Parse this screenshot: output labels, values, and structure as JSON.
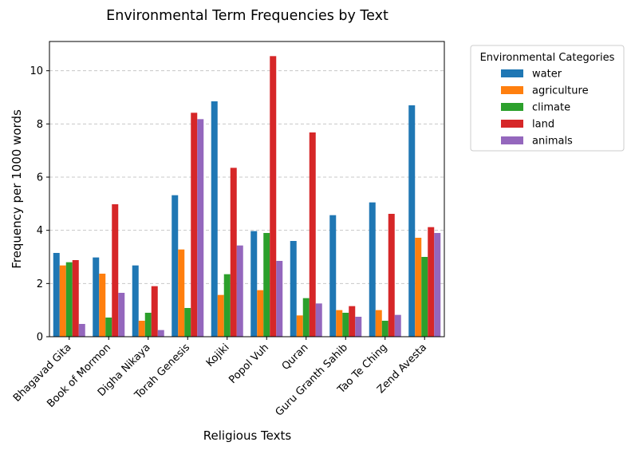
{
  "chart_data": {
    "type": "bar",
    "title": "Environmental Term Frequencies by Text",
    "xlabel": "Religious Texts",
    "ylabel": "Frequency per 1000 words",
    "ylim": [
      0,
      11.1
    ],
    "yticks": [
      0,
      2,
      4,
      6,
      8,
      10
    ],
    "grid": "y-dashed",
    "legend_title": "Environmental Categories",
    "legend_position": "outside-upper-right",
    "categories": [
      "Bhagavad Gita",
      "Book of Mormon",
      "Digha Nikaya",
      "Torah Genesis",
      "Kojiki",
      "Popol Vuh",
      "Quran",
      "Guru Granth Sahib",
      "Tao Te Ching",
      "Zend Avesta"
    ],
    "series": [
      {
        "name": "water",
        "color": "#1f77b4",
        "values": [
          3.15,
          2.98,
          2.68,
          5.32,
          8.85,
          3.97,
          3.6,
          4.57,
          5.05,
          8.7
        ]
      },
      {
        "name": "agriculture",
        "color": "#ff7f0e",
        "values": [
          2.68,
          2.37,
          0.6,
          3.28,
          1.57,
          1.75,
          0.8,
          1.0,
          1.0,
          3.72
        ]
      },
      {
        "name": "climate",
        "color": "#2ca02c",
        "values": [
          2.8,
          0.72,
          0.9,
          1.08,
          2.35,
          3.9,
          1.45,
          0.9,
          0.6,
          3.0
        ]
      },
      {
        "name": "land",
        "color": "#d62728",
        "values": [
          2.88,
          4.98,
          1.9,
          8.42,
          6.35,
          10.55,
          7.68,
          1.15,
          4.62,
          4.12
        ]
      },
      {
        "name": "animals",
        "color": "#9467bd",
        "values": [
          0.48,
          1.65,
          0.25,
          8.18,
          3.43,
          2.85,
          1.25,
          0.75,
          0.82,
          3.9
        ]
      }
    ]
  }
}
